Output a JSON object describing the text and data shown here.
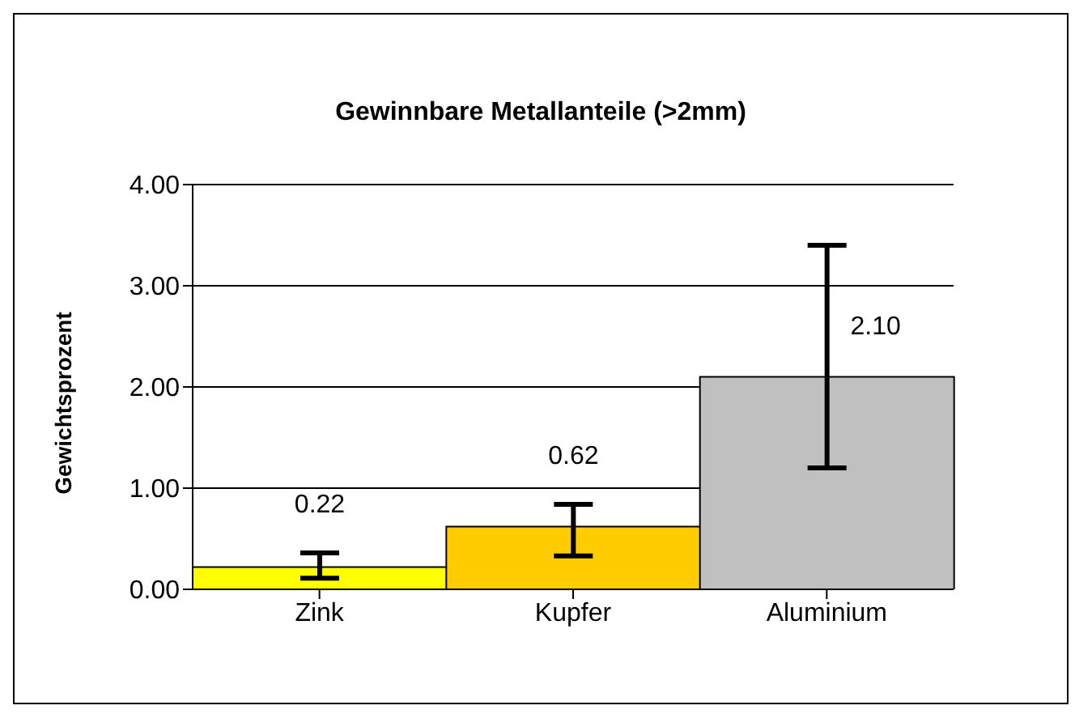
{
  "chart_data": {
    "type": "bar",
    "title": "Gewinnbare Metallanteile (>2mm)",
    "ylabel": "Gewichtsprozent",
    "categories": [
      "Zink",
      "Kupfer",
      "Aluminium"
    ],
    "values": [
      0.22,
      0.62,
      2.1
    ],
    "colors": [
      "#ffff00",
      "#ffcc00",
      "#c0c0c0"
    ],
    "errors": [
      [
        0.11,
        0.36
      ],
      [
        0.33,
        0.84
      ],
      [
        1.2,
        3.4
      ]
    ],
    "value_labels": [
      "0.22",
      "0.62",
      "2.10"
    ],
    "ylim": [
      0,
      4
    ],
    "yticks": [
      {
        "value": 0,
        "label": "0.00"
      },
      {
        "value": 1,
        "label": "1.00"
      },
      {
        "value": 2,
        "label": "2.00"
      },
      {
        "value": 3,
        "label": "3.00"
      },
      {
        "value": 4,
        "label": "4.00"
      }
    ],
    "grid": "y",
    "legend": false
  }
}
